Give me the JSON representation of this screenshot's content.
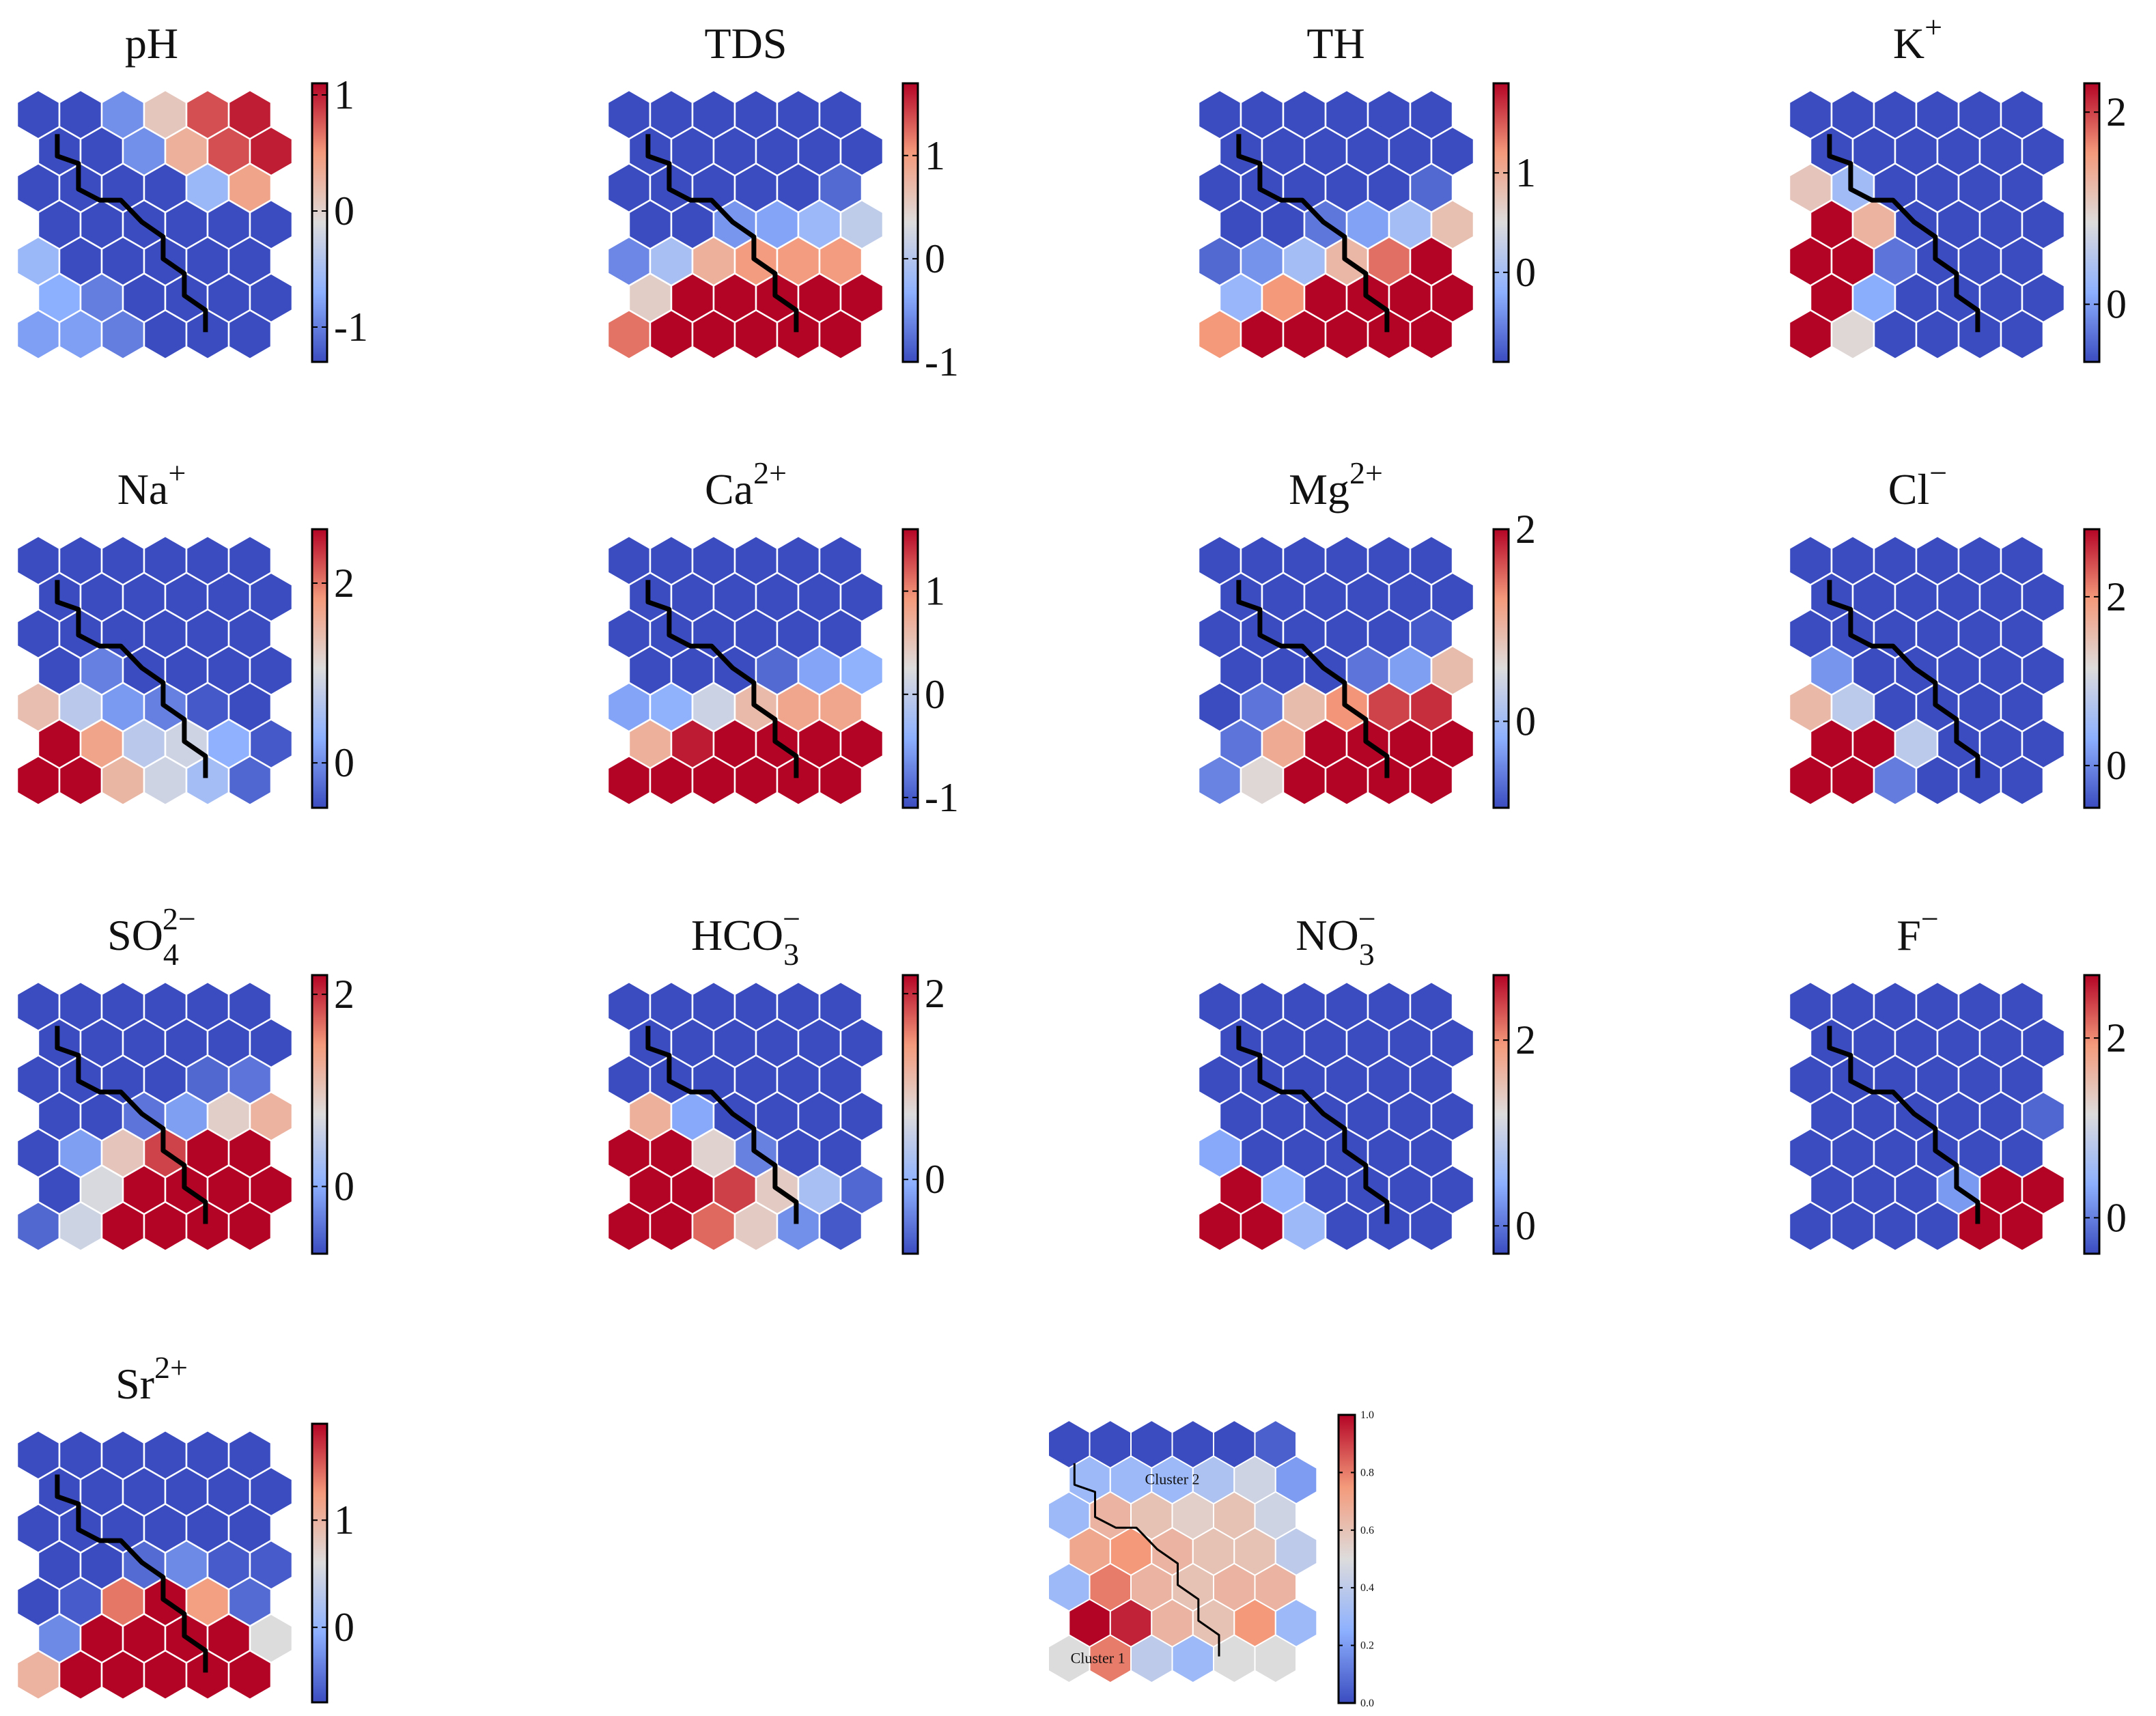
{
  "figure": {
    "legend_colors": {
      "low": "#3b4cc0",
      "mid": "#dddcdc",
      "high": "#b40426"
    }
  },
  "chart_data": [
    {
      "type": "heatmap",
      "title": "pH",
      "title_base": "pH",
      "title_sup": "",
      "title_sub": "",
      "ticks": [
        1,
        0,
        -1
      ],
      "range": [
        -1.3,
        1.1
      ],
      "values": [
        [
          -1.3,
          -1.3,
          -0.9,
          0.1,
          0.8,
          1.0
        ],
        [
          -1.3,
          -1.3,
          -0.9,
          0.3,
          0.8,
          1.0
        ],
        [
          -1.3,
          -1.3,
          -1.3,
          -1.3,
          -0.6,
          0.4
        ],
        [
          -1.3,
          -1.3,
          -1.3,
          -1.3,
          -1.3,
          -1.3
        ],
        [
          -0.6,
          -1.3,
          -1.3,
          -1.3,
          -1.3,
          -1.3
        ],
        [
          -0.7,
          -1.0,
          -1.3,
          -1.3,
          -1.3,
          -1.3
        ],
        [
          -0.8,
          -0.8,
          -1.0,
          -1.3,
          -1.3,
          -1.3
        ]
      ]
    },
    {
      "type": "heatmap",
      "title": "TDS",
      "title_base": "TDS",
      "title_sup": "",
      "title_sub": "",
      "ticks": [
        1,
        0,
        -1
      ],
      "range": [
        -1.0,
        1.7
      ],
      "values": [
        [
          -1.0,
          -1.0,
          -1.0,
          -1.0,
          -1.0,
          -1.0
        ],
        [
          -1.0,
          -1.0,
          -1.0,
          -1.0,
          -1.0,
          -1.0
        ],
        [
          -1.0,
          -1.0,
          -1.0,
          -1.0,
          -1.0,
          -0.8
        ],
        [
          -1.0,
          -1.0,
          -0.5,
          -0.4,
          -0.2,
          0.1
        ],
        [
          -0.6,
          -0.1,
          0.8,
          1.0,
          1.0,
          1.0
        ],
        [
          0.5,
          1.7,
          1.7,
          1.7,
          1.7,
          1.7
        ],
        [
          1.2,
          1.7,
          1.7,
          1.7,
          1.7,
          1.7
        ]
      ]
    },
    {
      "type": "heatmap",
      "title": "TH",
      "title_base": "TH",
      "title_sup": "",
      "title_sub": "",
      "ticks": [
        1,
        0
      ],
      "range": [
        -0.9,
        1.9
      ],
      "values": [
        [
          -0.9,
          -0.9,
          -0.9,
          -0.9,
          -0.9,
          -0.9
        ],
        [
          -0.9,
          -0.9,
          -0.9,
          -0.9,
          -0.9,
          -0.9
        ],
        [
          -0.9,
          -0.9,
          -0.9,
          -0.9,
          -0.9,
          -0.7
        ],
        [
          -0.9,
          -0.9,
          -0.6,
          -0.3,
          0.0,
          0.8
        ],
        [
          -0.7,
          -0.4,
          0.0,
          0.9,
          1.4,
          1.9
        ],
        [
          -0.1,
          1.2,
          1.9,
          1.9,
          1.9,
          1.9
        ],
        [
          1.2,
          1.9,
          1.9,
          1.9,
          1.9,
          1.9
        ]
      ]
    },
    {
      "type": "heatmap",
      "title": "K⁺",
      "title_base": "K",
      "title_sup": "+",
      "title_sub": "",
      "ticks": [
        2,
        0
      ],
      "range": [
        -0.6,
        2.3
      ],
      "values": [
        [
          -0.6,
          -0.6,
          -0.6,
          -0.6,
          -0.6,
          -0.6
        ],
        [
          -0.6,
          -0.6,
          -0.6,
          -0.6,
          -0.6,
          -0.6
        ],
        [
          1.1,
          0.3,
          -0.6,
          -0.6,
          -0.6,
          -0.6
        ],
        [
          2.3,
          1.3,
          -0.6,
          -0.6,
          -0.6,
          -0.6
        ],
        [
          2.3,
          2.3,
          -0.3,
          -0.6,
          -0.6,
          -0.6
        ],
        [
          2.3,
          0.1,
          -0.6,
          -0.6,
          -0.6,
          -0.6
        ],
        [
          2.3,
          0.9,
          -0.6,
          -0.6,
          -0.6,
          -0.6
        ]
      ]
    },
    {
      "type": "heatmap",
      "title": "Na⁺",
      "title_base": "Na",
      "title_sup": "+",
      "title_sub": "",
      "ticks": [
        2,
        0
      ],
      "range": [
        -0.5,
        2.6
      ],
      "values": [
        [
          -0.5,
          -0.5,
          -0.5,
          -0.5,
          -0.5,
          -0.5
        ],
        [
          -0.5,
          -0.5,
          -0.5,
          -0.5,
          -0.5,
          -0.5
        ],
        [
          -0.5,
          -0.5,
          -0.5,
          -0.5,
          -0.5,
          -0.5
        ],
        [
          -0.5,
          -0.1,
          -0.5,
          -0.5,
          -0.5,
          -0.5
        ],
        [
          1.4,
          0.7,
          0.1,
          -0.1,
          -0.4,
          -0.5
        ],
        [
          2.6,
          1.7,
          0.7,
          0.9,
          0.3,
          -0.4
        ],
        [
          2.6,
          2.6,
          1.5,
          0.9,
          0.5,
          -0.3
        ]
      ]
    },
    {
      "type": "heatmap",
      "title": "Ca²⁺",
      "title_base": "Ca",
      "title_sup": "2+",
      "title_sub": "",
      "ticks": [
        1,
        0,
        -1
      ],
      "range": [
        -1.1,
        1.6
      ],
      "values": [
        [
          -1.1,
          -1.1,
          -1.1,
          -1.1,
          -1.1,
          -1.1
        ],
        [
          -1.1,
          -1.1,
          -1.1,
          -1.1,
          -1.1,
          -1.1
        ],
        [
          -1.1,
          -1.1,
          -1.1,
          -1.1,
          -1.1,
          -1.1
        ],
        [
          -1.1,
          -1.1,
          -1.1,
          -0.9,
          -0.5,
          -0.4
        ],
        [
          -0.5,
          -0.4,
          0.1,
          0.6,
          0.8,
          0.8
        ],
        [
          0.7,
          1.5,
          1.6,
          1.6,
          1.6,
          1.6
        ],
        [
          1.6,
          1.6,
          1.6,
          1.6,
          1.6,
          1.6
        ]
      ]
    },
    {
      "type": "heatmap",
      "title": "Mg²⁺",
      "title_base": "Mg",
      "title_sup": "2+",
      "title_sub": "",
      "ticks": [
        2,
        0
      ],
      "range": [
        -0.9,
        2.0
      ],
      "values": [
        [
          -0.9,
          -0.9,
          -0.9,
          -0.9,
          -0.9,
          -0.9
        ],
        [
          -0.9,
          -0.9,
          -0.9,
          -0.9,
          -0.9,
          -0.9
        ],
        [
          -0.9,
          -0.9,
          -0.9,
          -0.9,
          -0.9,
          -0.8
        ],
        [
          -0.9,
          -0.9,
          -0.9,
          -0.6,
          -0.3,
          0.9
        ],
        [
          -0.9,
          -0.6,
          0.9,
          1.3,
          1.7,
          1.8
        ],
        [
          -0.6,
          1.1,
          2.0,
          2.0,
          2.0,
          2.0
        ],
        [
          -0.5,
          0.6,
          2.0,
          2.0,
          2.0,
          2.0
        ]
      ]
    },
    {
      "type": "heatmap",
      "title": "Cl⁻",
      "title_base": "Cl",
      "title_sup": "−",
      "title_sub": "",
      "ticks": [
        2,
        0
      ],
      "range": [
        -0.5,
        2.8
      ],
      "values": [
        [
          -0.5,
          -0.5,
          -0.5,
          -0.5,
          -0.5,
          -0.5
        ],
        [
          -0.5,
          -0.5,
          -0.5,
          -0.5,
          -0.5,
          -0.5
        ],
        [
          -0.5,
          -0.5,
          -0.5,
          -0.5,
          -0.5,
          -0.5
        ],
        [
          0.1,
          -0.5,
          -0.5,
          -0.5,
          -0.5,
          -0.5
        ],
        [
          1.6,
          0.8,
          -0.5,
          -0.5,
          -0.5,
          -0.5
        ],
        [
          2.8,
          2.8,
          0.8,
          -0.5,
          -0.5,
          -0.5
        ],
        [
          2.8,
          2.8,
          -0.1,
          -0.5,
          -0.5,
          -0.5
        ]
      ]
    },
    {
      "type": "heatmap",
      "title": "SO₄²⁻",
      "title_base": "SO",
      "title_sup": "2−",
      "title_sub": "4",
      "ticks": [
        2,
        0
      ],
      "range": [
        -0.7,
        2.2
      ],
      "values": [
        [
          -0.7,
          -0.7,
          -0.7,
          -0.7,
          -0.7,
          -0.7
        ],
        [
          -0.7,
          -0.7,
          -0.7,
          -0.7,
          -0.7,
          -0.7
        ],
        [
          -0.7,
          -0.7,
          -0.7,
          -0.7,
          -0.5,
          -0.4
        ],
        [
          -0.7,
          -0.7,
          -0.4,
          -0.1,
          0.9,
          1.2
        ],
        [
          -0.7,
          -0.1,
          1.0,
          1.9,
          2.2,
          2.2
        ],
        [
          -0.7,
          0.7,
          2.2,
          2.2,
          2.2,
          2.2
        ],
        [
          -0.5,
          0.6,
          2.2,
          2.2,
          2.2,
          2.2
        ]
      ]
    },
    {
      "type": "heatmap",
      "title": "HCO₃⁻",
      "title_base": "HCO",
      "title_sup": "−",
      "title_sub": "3",
      "ticks": [
        2,
        0
      ],
      "range": [
        -0.8,
        2.2
      ],
      "values": [
        [
          -0.8,
          -0.8,
          -0.8,
          -0.8,
          -0.8,
          -0.8
        ],
        [
          -0.8,
          -0.8,
          -0.8,
          -0.8,
          -0.8,
          -0.8
        ],
        [
          -0.8,
          -0.8,
          -0.8,
          -0.8,
          -0.8,
          -0.8
        ],
        [
          1.2,
          -0.1,
          -0.8,
          -0.8,
          -0.8,
          -0.8
        ],
        [
          2.2,
          2.2,
          0.8,
          -0.4,
          -0.8,
          -0.8
        ],
        [
          2.2,
          2.2,
          1.9,
          0.9,
          0.2,
          -0.6
        ],
        [
          2.2,
          2.2,
          1.7,
          0.9,
          -0.3,
          -0.7
        ]
      ]
    },
    {
      "type": "heatmap",
      "title": "NO₃⁻",
      "title_base": "NO",
      "title_sup": "−",
      "title_sub": "3",
      "ticks": [
        2,
        0
      ],
      "range": [
        -0.3,
        2.7
      ],
      "values": [
        [
          -0.3,
          -0.3,
          -0.3,
          -0.3,
          -0.3,
          -0.3
        ],
        [
          -0.3,
          -0.3,
          -0.3,
          -0.3,
          -0.3,
          -0.3
        ],
        [
          -0.3,
          -0.3,
          -0.3,
          -0.3,
          -0.3,
          -0.3
        ],
        [
          -0.3,
          -0.3,
          -0.3,
          -0.3,
          -0.3,
          -0.3
        ],
        [
          0.4,
          -0.3,
          -0.3,
          -0.3,
          -0.3,
          -0.3
        ],
        [
          2.7,
          0.5,
          -0.3,
          -0.3,
          -0.3,
          -0.3
        ],
        [
          2.7,
          2.7,
          0.6,
          -0.3,
          -0.3,
          -0.3
        ]
      ]
    },
    {
      "type": "heatmap",
      "title": "F⁻",
      "title_base": "F",
      "title_sup": "−",
      "title_sub": "",
      "ticks": [
        2,
        0
      ],
      "range": [
        -0.4,
        2.7
      ],
      "values": [
        [
          -0.4,
          -0.4,
          -0.4,
          -0.4,
          -0.4,
          -0.4
        ],
        [
          -0.4,
          -0.4,
          -0.4,
          -0.4,
          -0.4,
          -0.4
        ],
        [
          -0.4,
          -0.4,
          -0.4,
          -0.4,
          -0.4,
          -0.4
        ],
        [
          -0.4,
          -0.4,
          -0.4,
          -0.4,
          -0.4,
          -0.2
        ],
        [
          -0.4,
          -0.4,
          -0.4,
          -0.4,
          -0.4,
          -0.4
        ],
        [
          -0.4,
          -0.4,
          -0.4,
          0.2,
          2.7,
          2.7
        ],
        [
          -0.4,
          -0.4,
          -0.4,
          -0.4,
          2.7,
          2.7
        ]
      ]
    },
    {
      "type": "heatmap",
      "title": "Sr²⁺",
      "title_base": "Sr",
      "title_sup": "2+",
      "title_sub": "",
      "ticks": [
        1,
        0
      ],
      "range": [
        -0.7,
        1.9
      ],
      "values": [
        [
          -0.7,
          -0.7,
          -0.7,
          -0.7,
          -0.7,
          -0.7
        ],
        [
          -0.7,
          -0.7,
          -0.7,
          -0.7,
          -0.7,
          -0.7
        ],
        [
          -0.7,
          -0.7,
          -0.7,
          -0.7,
          -0.7,
          -0.7
        ],
        [
          -0.7,
          -0.7,
          -0.5,
          -0.3,
          -0.6,
          -0.6
        ],
        [
          -0.7,
          -0.6,
          1.4,
          1.9,
          1.2,
          -0.5
        ],
        [
          -0.3,
          1.9,
          1.9,
          1.9,
          1.9,
          0.6
        ],
        [
          1.0,
          1.9,
          1.9,
          1.9,
          1.9,
          1.9
        ]
      ]
    },
    {
      "type": "heatmap",
      "title": "",
      "title_base": "",
      "title_sup": "",
      "title_sub": "",
      "ticks": [
        "1.0",
        "0.8",
        "0.6",
        "0.4",
        "0.2",
        "0.0"
      ],
      "range": [
        0.0,
        1.0
      ],
      "cluster_labels": [
        "Cluster 2",
        "Cluster 1"
      ],
      "values": [
        [
          0.0,
          0.0,
          0.0,
          0.0,
          0.0,
          0.05
        ],
        [
          0.3,
          0.3,
          0.3,
          0.35,
          0.45,
          0.2
        ],
        [
          0.3,
          0.65,
          0.6,
          0.55,
          0.6,
          0.45
        ],
        [
          0.7,
          0.75,
          0.65,
          0.6,
          0.6,
          0.4
        ],
        [
          0.3,
          0.8,
          0.65,
          0.6,
          0.65,
          0.65
        ],
        [
          1.0,
          0.95,
          0.65,
          0.6,
          0.75,
          0.3
        ],
        [
          0.5,
          0.8,
          0.4,
          0.3,
          0.5,
          0.5
        ]
      ]
    }
  ]
}
